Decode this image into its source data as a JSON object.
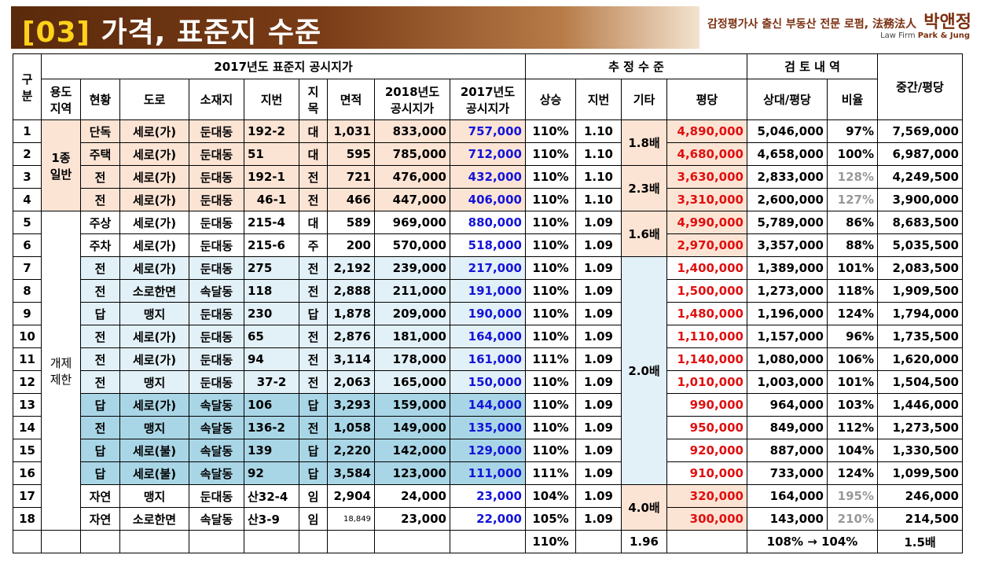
{
  "header": {
    "title_num": "[03]",
    "title_text": " 가격, 표준지 수준",
    "firm_tag": "감정평가사 출신 부동산 전문 로펌, 法務法人",
    "firm_name": "박앤정",
    "firm_sub_prefix": "Law Firm",
    "firm_sub_name": "Park & Jung"
  },
  "table": {
    "headers": {
      "gu": "구분",
      "group_2017": "2017년도 표준지 공시지가",
      "group_est": "추 정 수 준",
      "group_review": "검 토 내 역",
      "median": "중간/평당",
      "use": "용도지역",
      "status": "현황",
      "road": "도로",
      "location": "소재지",
      "lot": "지번",
      "jimok": "지목",
      "area": "면적",
      "p2018": "2018년도 공시지가",
      "p2017": "2017년도 공시지가",
      "rise": "상승",
      "lotfac": "지번",
      "other": "기타",
      "pyeong": "평당",
      "relative": "상대/평당",
      "ratio": "비율"
    },
    "rows": [
      {
        "no": "1",
        "status": "단독",
        "road": "세로(가)",
        "loc": "둔대동",
        "lot": "192-2",
        "jimok": "대",
        "area": "1,031",
        "p2018": "833,000",
        "p2017": "757,000",
        "rise": "110%",
        "lotfac": "1.10",
        "pyeong": "4,890,000",
        "relative": "5,046,000",
        "ratio": "97%",
        "median": "7,569,000"
      },
      {
        "no": "2",
        "status": "주택",
        "road": "세로(가)",
        "loc": "둔대동",
        "lot": "51",
        "jimok": "대",
        "area": "595",
        "p2018": "785,000",
        "p2017": "712,000",
        "rise": "110%",
        "lotfac": "1.10",
        "pyeong": "4,680,000",
        "relative": "4,658,000",
        "ratio": "100%",
        "median": "6,987,000"
      },
      {
        "no": "3",
        "status": "전",
        "road": "세로(가)",
        "loc": "둔대동",
        "lot": "192-1",
        "jimok": "전",
        "area": "721",
        "p2018": "476,000",
        "p2017": "432,000",
        "rise": "110%",
        "lotfac": "1.10",
        "pyeong": "3,630,000",
        "relative": "2,833,000",
        "ratio": "128%",
        "median": "4,249,500"
      },
      {
        "no": "4",
        "status": "전",
        "road": "세로(가)",
        "loc": "둔대동",
        "lot": "46-1",
        "jimok": "전",
        "area": "466",
        "p2018": "447,000",
        "p2017": "406,000",
        "rise": "110%",
        "lotfac": "1.10",
        "pyeong": "3,310,000",
        "relative": "2,600,000",
        "ratio": "127%",
        "median": "3,900,000"
      },
      {
        "no": "5",
        "status": "주상",
        "road": "세로(가)",
        "loc": "둔대동",
        "lot": "215-4",
        "jimok": "대",
        "area": "589",
        "p2018": "969,000",
        "p2017": "880,000",
        "rise": "110%",
        "lotfac": "1.09",
        "pyeong": "4,990,000",
        "relative": "5,789,000",
        "ratio": "86%",
        "median": "8,683,500"
      },
      {
        "no": "6",
        "status": "주차",
        "road": "세로(가)",
        "loc": "둔대동",
        "lot": "215-6",
        "jimok": "주",
        "area": "200",
        "p2018": "570,000",
        "p2017": "518,000",
        "rise": "110%",
        "lotfac": "1.09",
        "pyeong": "2,970,000",
        "relative": "3,357,000",
        "ratio": "88%",
        "median": "5,035,500"
      },
      {
        "no": "7",
        "status": "전",
        "road": "세로(가)",
        "loc": "둔대동",
        "lot": "275",
        "jimok": "전",
        "area": "2,192",
        "p2018": "239,000",
        "p2017": "217,000",
        "rise": "110%",
        "lotfac": "1.09",
        "pyeong": "1,400,000",
        "relative": "1,389,000",
        "ratio": "101%",
        "median": "2,083,500"
      },
      {
        "no": "8",
        "status": "전",
        "road": "소로한면",
        "loc": "속달동",
        "lot": "118",
        "jimok": "전",
        "area": "2,888",
        "p2018": "211,000",
        "p2017": "191,000",
        "rise": "110%",
        "lotfac": "1.09",
        "pyeong": "1,500,000",
        "relative": "1,273,000",
        "ratio": "118%",
        "median": "1,909,500"
      },
      {
        "no": "9",
        "status": "답",
        "road": "맹지",
        "loc": "둔대동",
        "lot": "230",
        "jimok": "답",
        "area": "1,878",
        "p2018": "209,000",
        "p2017": "190,000",
        "rise": "110%",
        "lotfac": "1.09",
        "pyeong": "1,480,000",
        "relative": "1,196,000",
        "ratio": "124%",
        "median": "1,794,000"
      },
      {
        "no": "10",
        "status": "전",
        "road": "세로(가)",
        "loc": "둔대동",
        "lot": "65",
        "jimok": "전",
        "area": "2,876",
        "p2018": "181,000",
        "p2017": "164,000",
        "rise": "110%",
        "lotfac": "1.09",
        "pyeong": "1,110,000",
        "relative": "1,157,000",
        "ratio": "96%",
        "median": "1,735,500"
      },
      {
        "no": "11",
        "status": "전",
        "road": "세로(가)",
        "loc": "둔대동",
        "lot": "94",
        "jimok": "전",
        "area": "3,114",
        "p2018": "178,000",
        "p2017": "161,000",
        "rise": "111%",
        "lotfac": "1.09",
        "pyeong": "1,140,000",
        "relative": "1,080,000",
        "ratio": "106%",
        "median": "1,620,000"
      },
      {
        "no": "12",
        "status": "전",
        "road": "맹지",
        "loc": "둔대동",
        "lot": "37-2",
        "jimok": "전",
        "area": "2,063",
        "p2018": "165,000",
        "p2017": "150,000",
        "rise": "110%",
        "lotfac": "1.09",
        "pyeong": "1,010,000",
        "relative": "1,003,000",
        "ratio": "101%",
        "median": "1,504,500"
      },
      {
        "no": "13",
        "status": "답",
        "road": "세로(가)",
        "loc": "속달동",
        "lot": "106",
        "jimok": "답",
        "area": "3,293",
        "p2018": "159,000",
        "p2017": "144,000",
        "rise": "110%",
        "lotfac": "1.09",
        "pyeong": "990,000",
        "relative": "964,000",
        "ratio": "103%",
        "median": "1,446,000"
      },
      {
        "no": "14",
        "status": "전",
        "road": "맹지",
        "loc": "속달동",
        "lot": "136-2",
        "jimok": "전",
        "area": "1,058",
        "p2018": "149,000",
        "p2017": "135,000",
        "rise": "110%",
        "lotfac": "1.09",
        "pyeong": "950,000",
        "relative": "849,000",
        "ratio": "112%",
        "median": "1,273,500"
      },
      {
        "no": "15",
        "status": "답",
        "road": "세로(불)",
        "loc": "속달동",
        "lot": "139",
        "jimok": "답",
        "area": "2,220",
        "p2018": "142,000",
        "p2017": "129,000",
        "rise": "110%",
        "lotfac": "1.09",
        "pyeong": "920,000",
        "relative": "887,000",
        "ratio": "104%",
        "median": "1,330,500"
      },
      {
        "no": "16",
        "status": "답",
        "road": "세로(불)",
        "loc": "속달동",
        "lot": "92",
        "jimok": "답",
        "area": "3,584",
        "p2018": "123,000",
        "p2017": "111,000",
        "rise": "111%",
        "lotfac": "1.09",
        "pyeong": "910,000",
        "relative": "733,000",
        "ratio": "124%",
        "median": "1,099,500"
      },
      {
        "no": "17",
        "status": "자연",
        "road": "맹지",
        "loc": "둔대동",
        "lot": "산32-4",
        "jimok": "임",
        "area": "2,904",
        "p2018": "24,000",
        "p2017": "23,000",
        "rise": "104%",
        "lotfac": "1.09",
        "pyeong": "320,000",
        "relative": "164,000",
        "ratio": "195%",
        "median": "246,000"
      },
      {
        "no": "18",
        "status": "자연",
        "road": "소로한면",
        "loc": "속달동",
        "lot": "산3-9",
        "jimok": "임",
        "area": "18,849",
        "p2018": "23,000",
        "p2017": "22,000",
        "rise": "105%",
        "lotfac": "1.09",
        "pyeong": "300,000",
        "relative": "143,000",
        "ratio": "210%",
        "median": "214,500"
      }
    ],
    "use_zones": {
      "zone1": "1종 일반",
      "zone2": "개제 제한"
    },
    "other_factors": {
      "g1": "1.8배",
      "g2": "2.3배",
      "g3": "1.6배",
      "g4": "2.0배",
      "g5": "4.0배"
    },
    "footer": {
      "rise": "110%",
      "other": "1.96",
      "ratio": "108% → 104%",
      "median": "1.5배"
    }
  },
  "colors": {
    "peach": "#fce4d4",
    "light_blue": "#e2f0f7",
    "mid_blue": "#a9d6e6",
    "blue_text": "#1414d8",
    "red_text": "#e01010",
    "title_brown": "#5a2a0c"
  }
}
